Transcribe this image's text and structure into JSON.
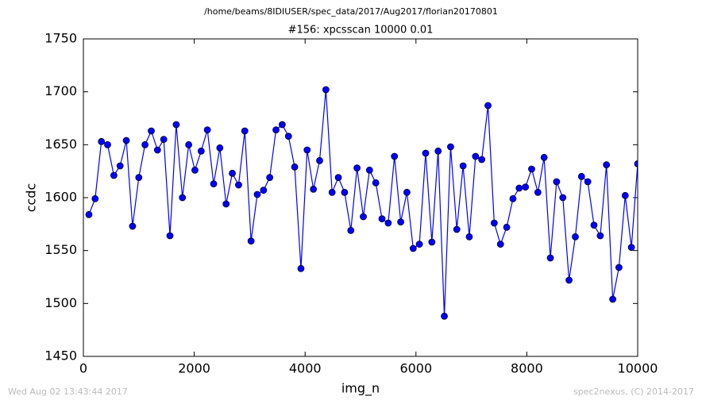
{
  "chart_data": {
    "type": "line",
    "suptitle": "/home/beams/8IDIUSER/spec_data/2017/Aug2017/florian20170801",
    "title": "#156: xpcsscan 10000 0.01",
    "xlabel": "img_n",
    "ylabel": "ccdc",
    "footer_left": "Wed Aug 02 13:43:44 2017",
    "footer_right": "spec2nexus, (C) 2014-2017",
    "x": [
      100,
      212,
      325,
      437,
      550,
      662,
      775,
      887,
      1000,
      1112,
      1225,
      1337,
      1450,
      1562,
      1675,
      1787,
      1900,
      2012,
      2125,
      2237,
      2350,
      2462,
      2575,
      2687,
      2800,
      2912,
      3025,
      3137,
      3250,
      3362,
      3475,
      3587,
      3700,
      3812,
      3925,
      4037,
      4150,
      4262,
      4375,
      4487,
      4600,
      4712,
      4825,
      4937,
      5050,
      5162,
      5275,
      5387,
      5500,
      5612,
      5725,
      5837,
      5950,
      6062,
      6175,
      6287,
      6400,
      6512,
      6625,
      6737,
      6850,
      6962,
      7075,
      7187,
      7300,
      7412,
      7525,
      7637,
      7750,
      7862,
      7975,
      8087,
      8200,
      8312,
      8425,
      8537,
      8650,
      8762,
      8875,
      8987,
      9100,
      9212,
      9325,
      9437,
      9550,
      9662,
      9775,
      9887,
      10000
    ],
    "series": [
      {
        "color": "#0000ff",
        "values": [
          1584,
          1599,
          1653,
          1650,
          1621,
          1630,
          1654,
          1573,
          1619,
          1650,
          1663,
          1645,
          1655,
          1564,
          1669,
          1600,
          1650,
          1626,
          1644,
          1664,
          1613,
          1647,
          1594,
          1623,
          1612,
          1663,
          1559,
          1603,
          1607,
          1619,
          1664,
          1669,
          1658,
          1629,
          1533,
          1645,
          1608,
          1635,
          1702,
          1605,
          1619,
          1605,
          1569,
          1628,
          1582,
          1626,
          1614,
          1580,
          1576,
          1639,
          1577,
          1605,
          1552,
          1556,
          1642,
          1558,
          1644,
          1488,
          1648,
          1570,
          1630,
          1563,
          1639,
          1636,
          1687,
          1576,
          1556,
          1572,
          1599,
          1609,
          1610,
          1627,
          1605,
          1638,
          1543,
          1615,
          1600,
          1522,
          1563,
          1620,
          1615,
          1574,
          1564,
          1631,
          1504,
          1534,
          1602,
          1553,
          1632
        ]
      }
    ],
    "xlim": [
      0,
      10000
    ],
    "xticks": [
      0,
      2000,
      4000,
      6000,
      8000,
      10000
    ],
    "ylim": [
      1450,
      1750
    ],
    "yticks": [
      1450,
      1500,
      1550,
      1600,
      1650,
      1700,
      1750
    ],
    "grid": false
  }
}
